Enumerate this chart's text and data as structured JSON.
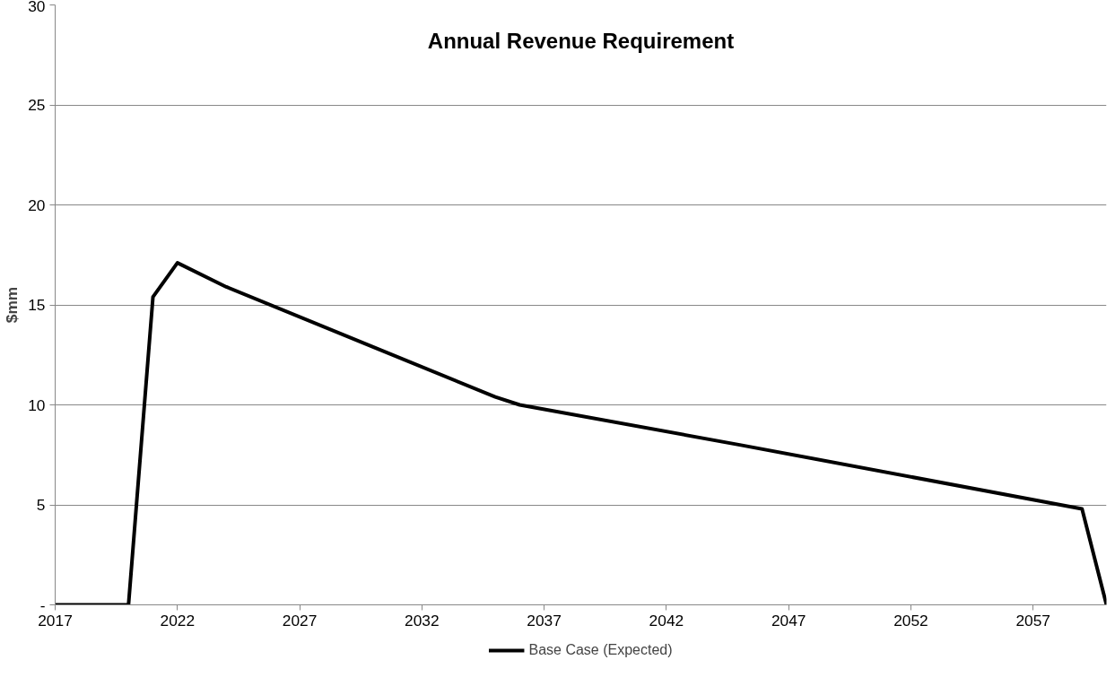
{
  "chart_data": {
    "type": "line",
    "title": "Annual Revenue Requirement",
    "ylabel": "$mm",
    "x": [
      2017,
      2020,
      2021,
      2022,
      2024,
      2030,
      2035,
      2036,
      2045,
      2059,
      2060
    ],
    "series": [
      {
        "name": "Base Case (Expected)",
        "color": "#000000",
        "values": [
          0,
          0,
          15.4,
          17.1,
          15.9,
          12.9,
          10.4,
          10.0,
          8.0,
          4.8,
          0
        ]
      }
    ],
    "xlim": [
      2017,
      2060
    ],
    "xticks": [
      2017,
      2022,
      2027,
      2032,
      2037,
      2042,
      2047,
      2052,
      2057
    ],
    "ylim": [
      0,
      30
    ],
    "yticks": [
      {
        "value": 0,
        "label": "-"
      },
      5,
      10,
      15,
      20,
      25,
      30
    ],
    "grid": "y",
    "legend": "bottom",
    "marker": "none",
    "line_style": "solid"
  }
}
